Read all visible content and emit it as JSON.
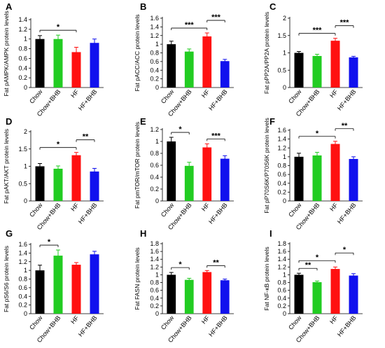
{
  "colors": [
    "#000000",
    "#22cc22",
    "#ff1111",
    "#1111ee"
  ],
  "chart_data": [
    {
      "panel": "A",
      "type": "bar",
      "categories": [
        "Chow",
        "Chow+BHB",
        "HF",
        "HF+BHB"
      ],
      "values": [
        1.0,
        1.0,
        0.73,
        0.92
      ],
      "errors": [
        0.07,
        0.08,
        0.1,
        0.08
      ],
      "ylabel": "Fat pAMPK/AMPK protein levels",
      "ylim": [
        0,
        1.4
      ],
      "yticks": [
        0,
        0.2,
        0.4,
        0.6,
        0.8,
        1,
        1.2,
        1.4
      ],
      "significance": [
        {
          "pair": [
            0,
            2
          ],
          "label": "*"
        }
      ]
    },
    {
      "panel": "B",
      "type": "bar",
      "categories": [
        "Chow",
        "Chow+BHB",
        "HF",
        "HF+BHB"
      ],
      "values": [
        1.0,
        0.83,
        1.18,
        0.61
      ],
      "errors": [
        0.07,
        0.06,
        0.08,
        0.04
      ],
      "ylabel": "Fat pACC/ACC protein levels",
      "ylim": [
        0,
        1.6
      ],
      "yticks": [
        0,
        0.2,
        0.4,
        0.6,
        0.8,
        1,
        1.2,
        1.4,
        1.6
      ],
      "significance": [
        {
          "pair": [
            0,
            2
          ],
          "label": "***"
        },
        {
          "pair": [
            2,
            3
          ],
          "label": "***"
        }
      ]
    },
    {
      "panel": "C",
      "type": "bar",
      "categories": [
        "Chow",
        "Chow+BHB",
        "HF",
        "HF+BHB"
      ],
      "values": [
        1.0,
        0.91,
        1.35,
        0.87
      ],
      "errors": [
        0.04,
        0.05,
        0.07,
        0.03
      ],
      "ylabel": "Fat pPP2A/PP2A protein levels",
      "ylim": [
        0,
        2
      ],
      "yticks": [
        0,
        0.5,
        1,
        1.5,
        2
      ],
      "significance": [
        {
          "pair": [
            0,
            2
          ],
          "label": "***"
        },
        {
          "pair": [
            2,
            3
          ],
          "label": "***"
        }
      ]
    },
    {
      "panel": "D",
      "type": "bar",
      "categories": [
        "Chow",
        "Chow+BHB",
        "HF",
        "HF+BHB"
      ],
      "values": [
        1.0,
        0.93,
        1.32,
        0.85
      ],
      "errors": [
        0.08,
        0.08,
        0.08,
        0.09
      ],
      "ylabel": "Fat pAKT/AKT protein levels",
      "ylim": [
        0,
        2
      ],
      "yticks": [
        0,
        0.5,
        1,
        1.5,
        2
      ],
      "significance": [
        {
          "pair": [
            0,
            2
          ],
          "label": "*"
        },
        {
          "pair": [
            2,
            3
          ],
          "label": "**"
        }
      ]
    },
    {
      "panel": "E",
      "type": "bar",
      "categories": [
        "Chow",
        "Chow+BHB",
        "HF",
        "HF+BHB"
      ],
      "values": [
        1.0,
        0.59,
        0.9,
        0.71
      ],
      "errors": [
        0.07,
        0.06,
        0.06,
        0.05
      ],
      "ylabel": "Fat pmTOR/mTOR protein levels",
      "ylim": [
        0,
        1.2
      ],
      "yticks": [
        0,
        0.2,
        0.4,
        0.6,
        0.8,
        1,
        1.2
      ],
      "significance": [
        {
          "pair": [
            0,
            1
          ],
          "label": "*"
        },
        {
          "pair": [
            2,
            3
          ],
          "label": "***"
        }
      ]
    },
    {
      "panel": "F",
      "type": "bar",
      "categories": [
        "Chow",
        "Chow+BHB",
        "HF",
        "HF+BHB"
      ],
      "values": [
        1.0,
        1.03,
        1.29,
        0.95
      ],
      "errors": [
        0.08,
        0.07,
        0.06,
        0.05
      ],
      "ylabel": "Fat pP70S6K/P70S6K protein levels",
      "ylim": [
        0,
        1.6
      ],
      "yticks": [
        0,
        0.2,
        0.4,
        0.6,
        0.8,
        1,
        1.2,
        1.4,
        1.6
      ],
      "significance": [
        {
          "pair": [
            0,
            2
          ],
          "label": "*"
        },
        {
          "pair": [
            2,
            3
          ],
          "label": "**"
        }
      ]
    },
    {
      "panel": "G",
      "type": "bar",
      "categories": [
        "Chow",
        "Chow+BHB",
        "HF",
        "HF+BHB"
      ],
      "values": [
        1.0,
        1.34,
        1.13,
        1.37
      ],
      "errors": [
        0.12,
        0.13,
        0.05,
        0.07
      ],
      "ylabel": "Fat pS6/S6 protein levels",
      "ylim": [
        0,
        1.6
      ],
      "yticks": [
        0,
        0.2,
        0.4,
        0.6,
        0.8,
        1,
        1.2,
        1.4,
        1.6
      ],
      "significance": [
        {
          "pair": [
            0,
            1
          ],
          "label": "*"
        }
      ]
    },
    {
      "panel": "H",
      "type": "bar",
      "categories": [
        "Chow",
        "Chow+BHB",
        "HF",
        "HF+BHB"
      ],
      "values": [
        1.0,
        0.87,
        1.07,
        0.86
      ],
      "errors": [
        0.06,
        0.04,
        0.04,
        0.03
      ],
      "ylabel": "Fat FASN protein levels",
      "ylim": [
        0,
        1.8
      ],
      "yticks": [
        0,
        0.2,
        0.4,
        0.6,
        0.8,
        1,
        1.2,
        1.4,
        1.6,
        1.8
      ],
      "significance": [
        {
          "pair": [
            0,
            1
          ],
          "label": "*"
        },
        {
          "pair": [
            2,
            3
          ],
          "label": "**"
        }
      ]
    },
    {
      "panel": "I",
      "type": "bar",
      "categories": [
        "Chow",
        "Chow+BHB",
        "HF",
        "HF+BHB"
      ],
      "values": [
        1.0,
        0.81,
        1.15,
        0.98
      ],
      "errors": [
        0.04,
        0.03,
        0.05,
        0.05
      ],
      "ylabel": "Fat NF-κB protein levels",
      "ylim": [
        0,
        1.8
      ],
      "yticks": [
        0,
        0.2,
        0.4,
        0.6,
        0.8,
        1,
        1.2,
        1.4,
        1.6,
        1.8
      ],
      "significance": [
        {
          "pair": [
            0,
            1
          ],
          "label": "**"
        },
        {
          "pair": [
            0,
            2
          ],
          "label": "*"
        },
        {
          "pair": [
            2,
            3
          ],
          "label": "*"
        }
      ]
    }
  ]
}
